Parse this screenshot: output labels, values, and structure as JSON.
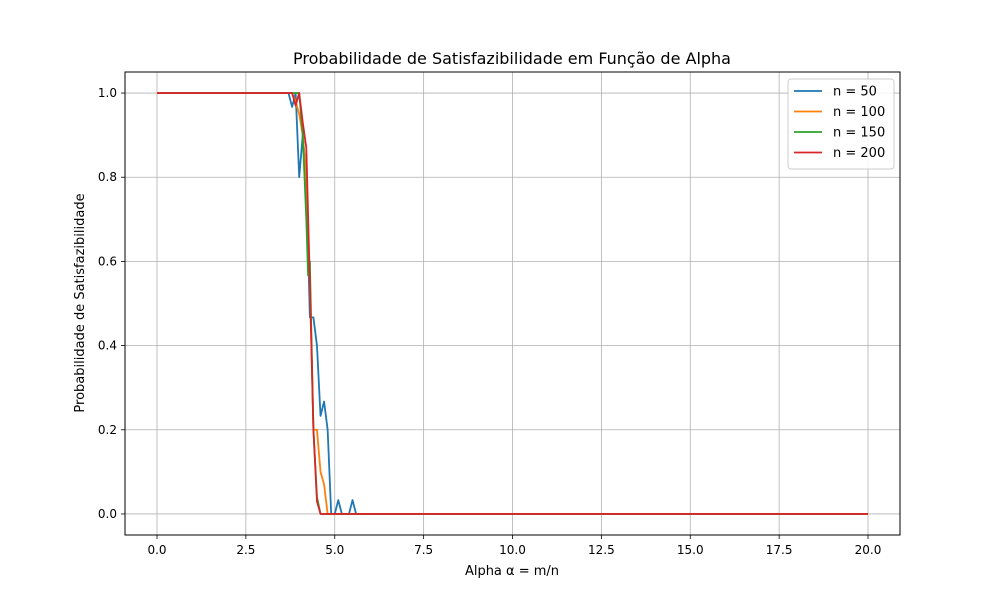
{
  "chart_data": {
    "type": "line",
    "title": "Probabilidade de Satisfazibilidade em Função de Alpha",
    "xlabel": "Alpha α = m/n",
    "ylabel": "Probabilidade de Satisfazibilidade",
    "xlim": [
      -0.9,
      20.9
    ],
    "ylim": [
      -0.05,
      1.05
    ],
    "x_ticks": [
      0.0,
      2.5,
      5.0,
      7.5,
      10.0,
      12.5,
      15.0,
      17.5,
      20.0
    ],
    "x_tick_labels": [
      "0.0",
      "2.5",
      "5.0",
      "7.5",
      "10.0",
      "12.5",
      "15.0",
      "17.5",
      "20.0"
    ],
    "y_ticks": [
      0.0,
      0.2,
      0.4,
      0.6,
      0.8,
      1.0
    ],
    "y_tick_labels": [
      "0.0",
      "0.2",
      "0.4",
      "0.6",
      "0.8",
      "1.0"
    ],
    "grid": true,
    "legend_position": "top-right",
    "series": [
      {
        "name": "n = 50",
        "color": "#1f77b4",
        "x": [
          0.0,
          3.7,
          3.8,
          3.9,
          4.0,
          4.1,
          4.2,
          4.3,
          4.4,
          4.5,
          4.6,
          4.7,
          4.8,
          4.9,
          5.0,
          5.1,
          5.2,
          5.3,
          5.4,
          5.5,
          5.6,
          20.0
        ],
        "y": [
          1.0,
          1.0,
          0.967,
          1.0,
          0.8,
          0.9,
          0.8,
          0.467,
          0.467,
          0.4,
          0.233,
          0.267,
          0.2,
          0.0,
          0.0,
          0.033,
          0.0,
          0.0,
          0.0,
          0.033,
          0.0,
          0.0
        ]
      },
      {
        "name": "n = 100",
        "color": "#ff7f0e",
        "x": [
          0.0,
          3.8,
          3.9,
          4.0,
          4.1,
          4.2,
          4.3,
          4.4,
          4.5,
          4.6,
          4.7,
          4.8,
          20.0
        ],
        "y": [
          1.0,
          1.0,
          0.98,
          0.95,
          0.9,
          0.8,
          0.55,
          0.2,
          0.2,
          0.1,
          0.07,
          0.0,
          0.0
        ]
      },
      {
        "name": "n = 150",
        "color": "#2ca02c",
        "x": [
          0.0,
          3.9,
          4.0,
          4.1,
          4.2,
          4.25,
          4.3,
          4.4,
          4.5,
          4.6,
          20.0
        ],
        "y": [
          1.0,
          1.0,
          1.0,
          0.9,
          0.7,
          0.567,
          0.6,
          0.2,
          0.04,
          0.0,
          0.0
        ]
      },
      {
        "name": "n = 200",
        "color": "#d62728",
        "x": [
          0.0,
          3.8,
          3.9,
          4.0,
          4.1,
          4.2,
          4.3,
          4.4,
          4.5,
          4.6,
          20.0
        ],
        "y": [
          1.0,
          1.0,
          0.97,
          1.0,
          0.93,
          0.87,
          0.55,
          0.2,
          0.03,
          0.0,
          0.0
        ]
      }
    ]
  }
}
